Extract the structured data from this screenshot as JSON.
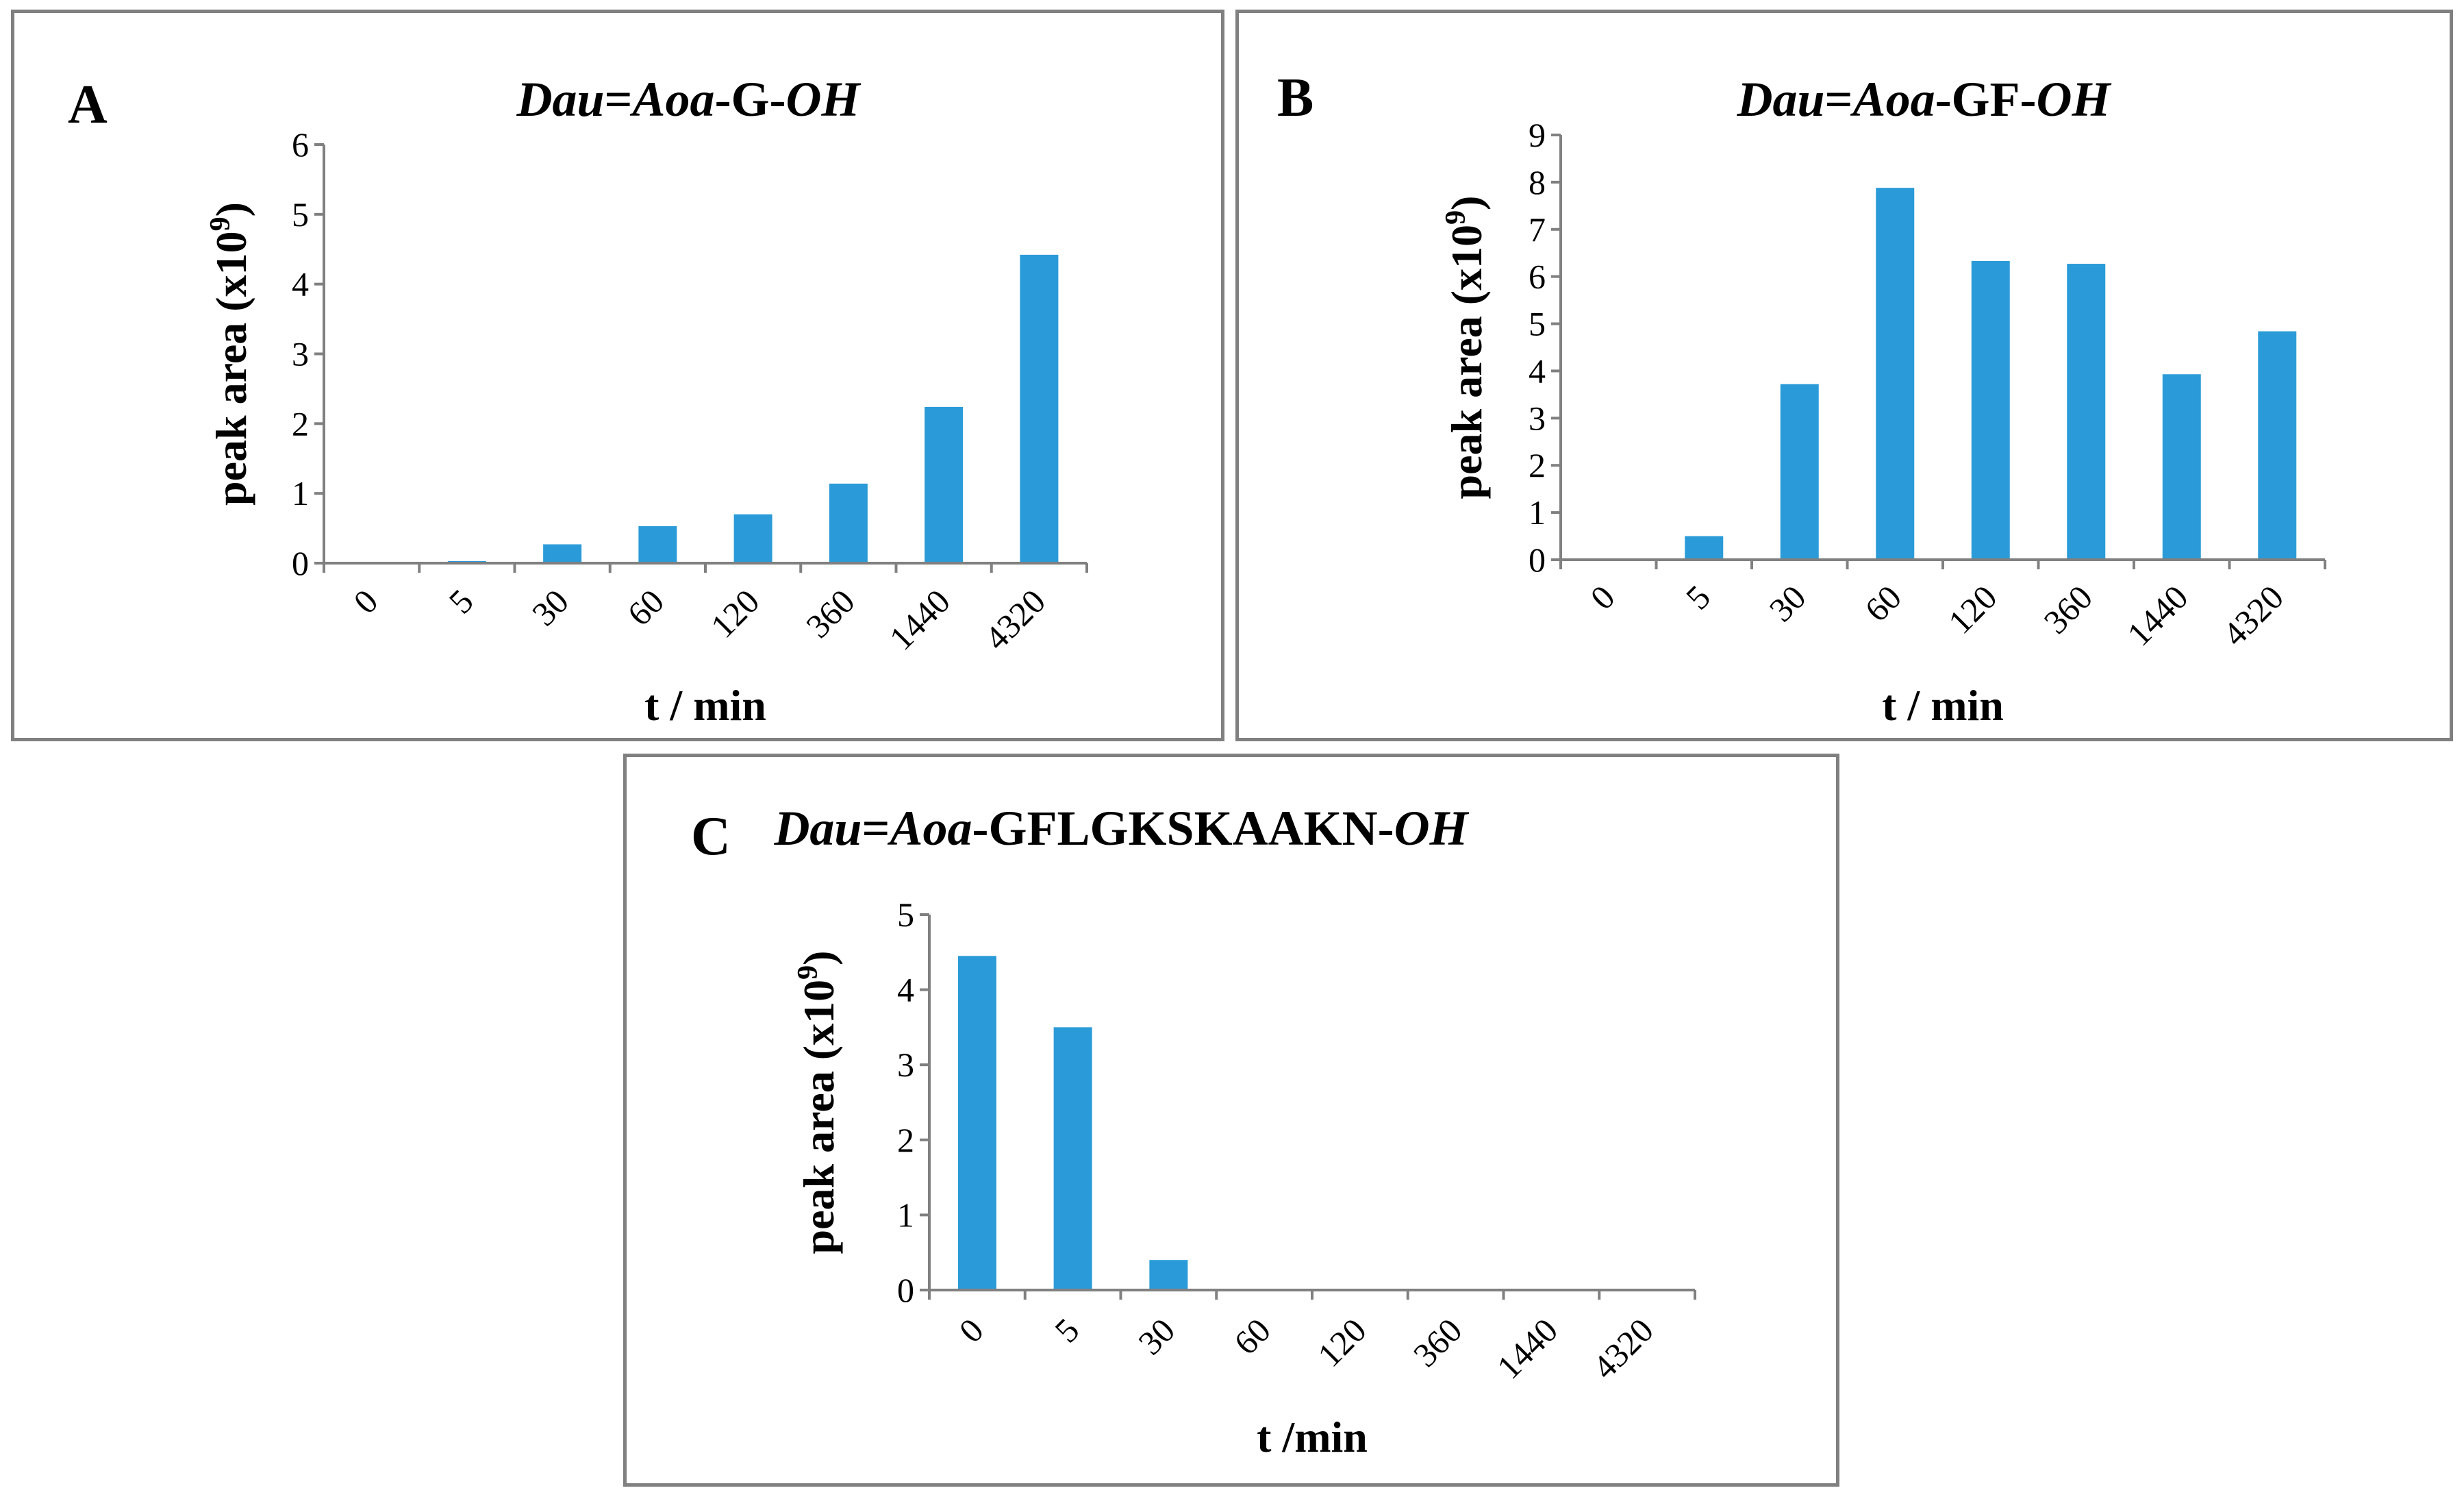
{
  "chart_data": [
    {
      "type": "bar",
      "panel": "A",
      "title_parts": [
        {
          "text": "Dau",
          "italic": true
        },
        {
          "text": "=",
          "italic": false
        },
        {
          "text": "Aoa",
          "italic": true
        },
        {
          "text": "-G-",
          "italic": false
        },
        {
          "text": "OH",
          "italic": true
        }
      ],
      "categories": [
        "0",
        "5",
        "30",
        "60",
        "120",
        "360",
        "1440",
        "4320"
      ],
      "values": [
        0,
        0.03,
        0.27,
        0.53,
        0.7,
        1.14,
        2.24,
        4.42
      ],
      "ylim": [
        0,
        6
      ],
      "yticks": [
        "0",
        "1",
        "2",
        "3",
        "4",
        "5",
        "6"
      ],
      "ylabel": "peak area (x10",
      "ylabel_sup": "9",
      "ylabel_close": ")",
      "xlabel": "t / min",
      "color": "#2a9bd8"
    },
    {
      "type": "bar",
      "panel": "B",
      "title_parts": [
        {
          "text": "Dau",
          "italic": true
        },
        {
          "text": "=",
          "italic": false
        },
        {
          "text": "Aoa",
          "italic": true
        },
        {
          "text": "-GF-",
          "italic": false
        },
        {
          "text": "OH",
          "italic": true
        }
      ],
      "categories": [
        "0",
        "5",
        "30",
        "60",
        "120",
        "360",
        "1440",
        "4320"
      ],
      "values": [
        0,
        0.5,
        3.72,
        7.88,
        6.33,
        6.27,
        3.93,
        4.84
      ],
      "ylim": [
        0,
        9
      ],
      "yticks": [
        "0",
        "1",
        "2",
        "3",
        "4",
        "5",
        "6",
        "7",
        "8",
        "9"
      ],
      "ylabel": "peak area (x10",
      "ylabel_sup": "9",
      "ylabel_close": ")",
      "xlabel": "t / min",
      "color": "#2a9bd8"
    },
    {
      "type": "bar",
      "panel": "C",
      "title_parts": [
        {
          "text": "Dau",
          "italic": true
        },
        {
          "text": "=",
          "italic": false
        },
        {
          "text": "Aoa",
          "italic": true
        },
        {
          "text": "-GFLGKSKAAKN-",
          "italic": false
        },
        {
          "text": "OH",
          "italic": true
        }
      ],
      "categories": [
        "0",
        "5",
        "30",
        "60",
        "120",
        "360",
        "1440",
        "4320"
      ],
      "values": [
        4.45,
        3.5,
        0.4,
        0,
        0,
        0,
        0,
        0
      ],
      "ylim": [
        0,
        5
      ],
      "yticks": [
        "0",
        "1",
        "2",
        "3",
        "4",
        "5"
      ],
      "ylabel": "peak area (x10",
      "ylabel_sup": "9",
      "ylabel_close": ")",
      "xlabel": "t /min",
      "color": "#2a9bd8"
    }
  ]
}
